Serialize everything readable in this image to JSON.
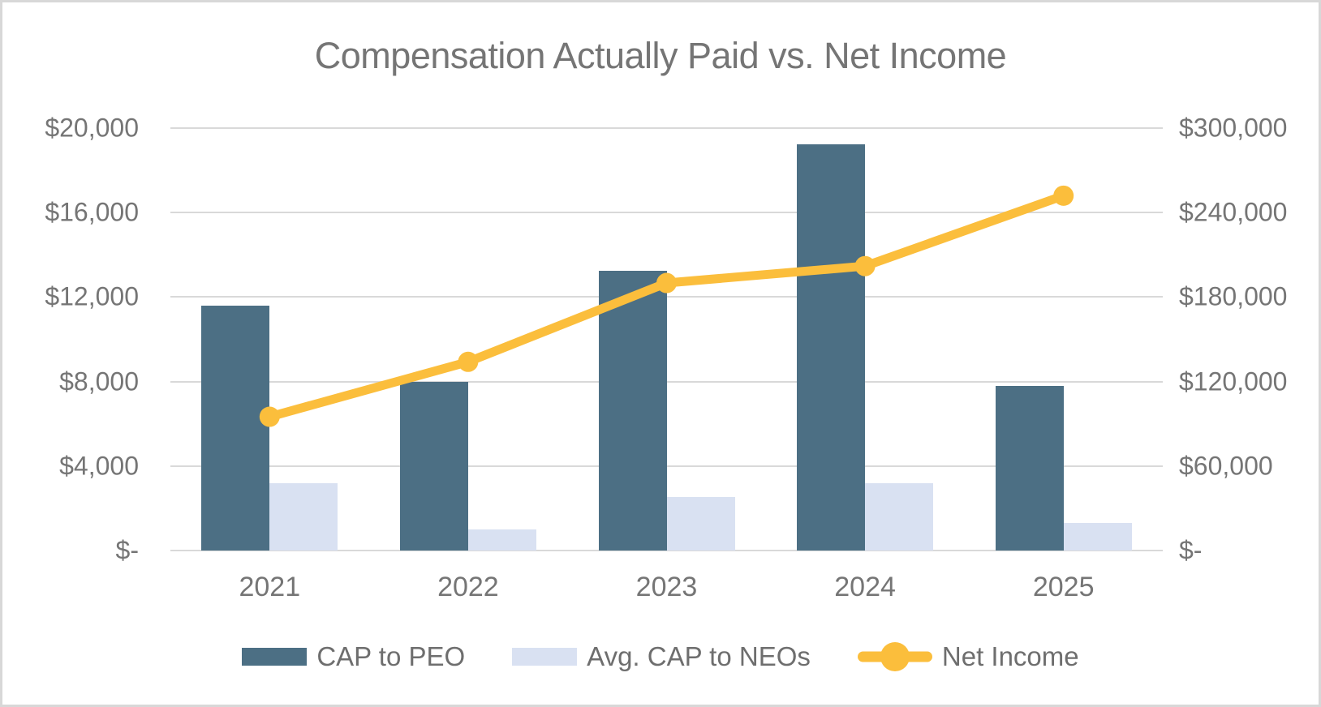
{
  "colors": {
    "cap_to_peo": "#4C6F84",
    "avg_cap_to_neos": "#D9E1F2",
    "net_income": "#FBBE3C",
    "text": "#757575",
    "gridline": "#D9D9D9"
  },
  "chart_data": {
    "type": "bar",
    "subtype": "combo-bar-line-dual-axis",
    "title": "Compensation Actually Paid vs. Net Income",
    "categories": [
      "2021",
      "2022",
      "2023",
      "2024",
      "2025"
    ],
    "series": [
      {
        "name": "CAP to PEO",
        "type": "bar",
        "axis": "left",
        "color": "#4C6F84",
        "values": [
          11600,
          8000,
          13250,
          19250,
          7800
        ]
      },
      {
        "name": "Avg. CAP to NEOs",
        "type": "bar",
        "axis": "left",
        "color": "#D9E1F2",
        "values": [
          3200,
          1000,
          2550,
          3200,
          1300
        ]
      },
      {
        "name": "Net Income",
        "type": "line",
        "axis": "right",
        "color": "#FBBE3C",
        "values": [
          95000,
          134000,
          190000,
          202000,
          252000
        ]
      }
    ],
    "left_axis": {
      "min": 0,
      "max": 20000,
      "ticks": [
        "$20,000",
        "$16,000",
        "$12,000",
        "$8,000",
        "$4,000",
        "$-"
      ]
    },
    "right_axis": {
      "min": 0,
      "max": 300000,
      "ticks": [
        "$300,000",
        "$240,000",
        "$180,000",
        "$120,000",
        "$60,000",
        "$-"
      ]
    },
    "grid": true,
    "legend_position": "bottom",
    "xlabel": "",
    "ylabel": ""
  }
}
